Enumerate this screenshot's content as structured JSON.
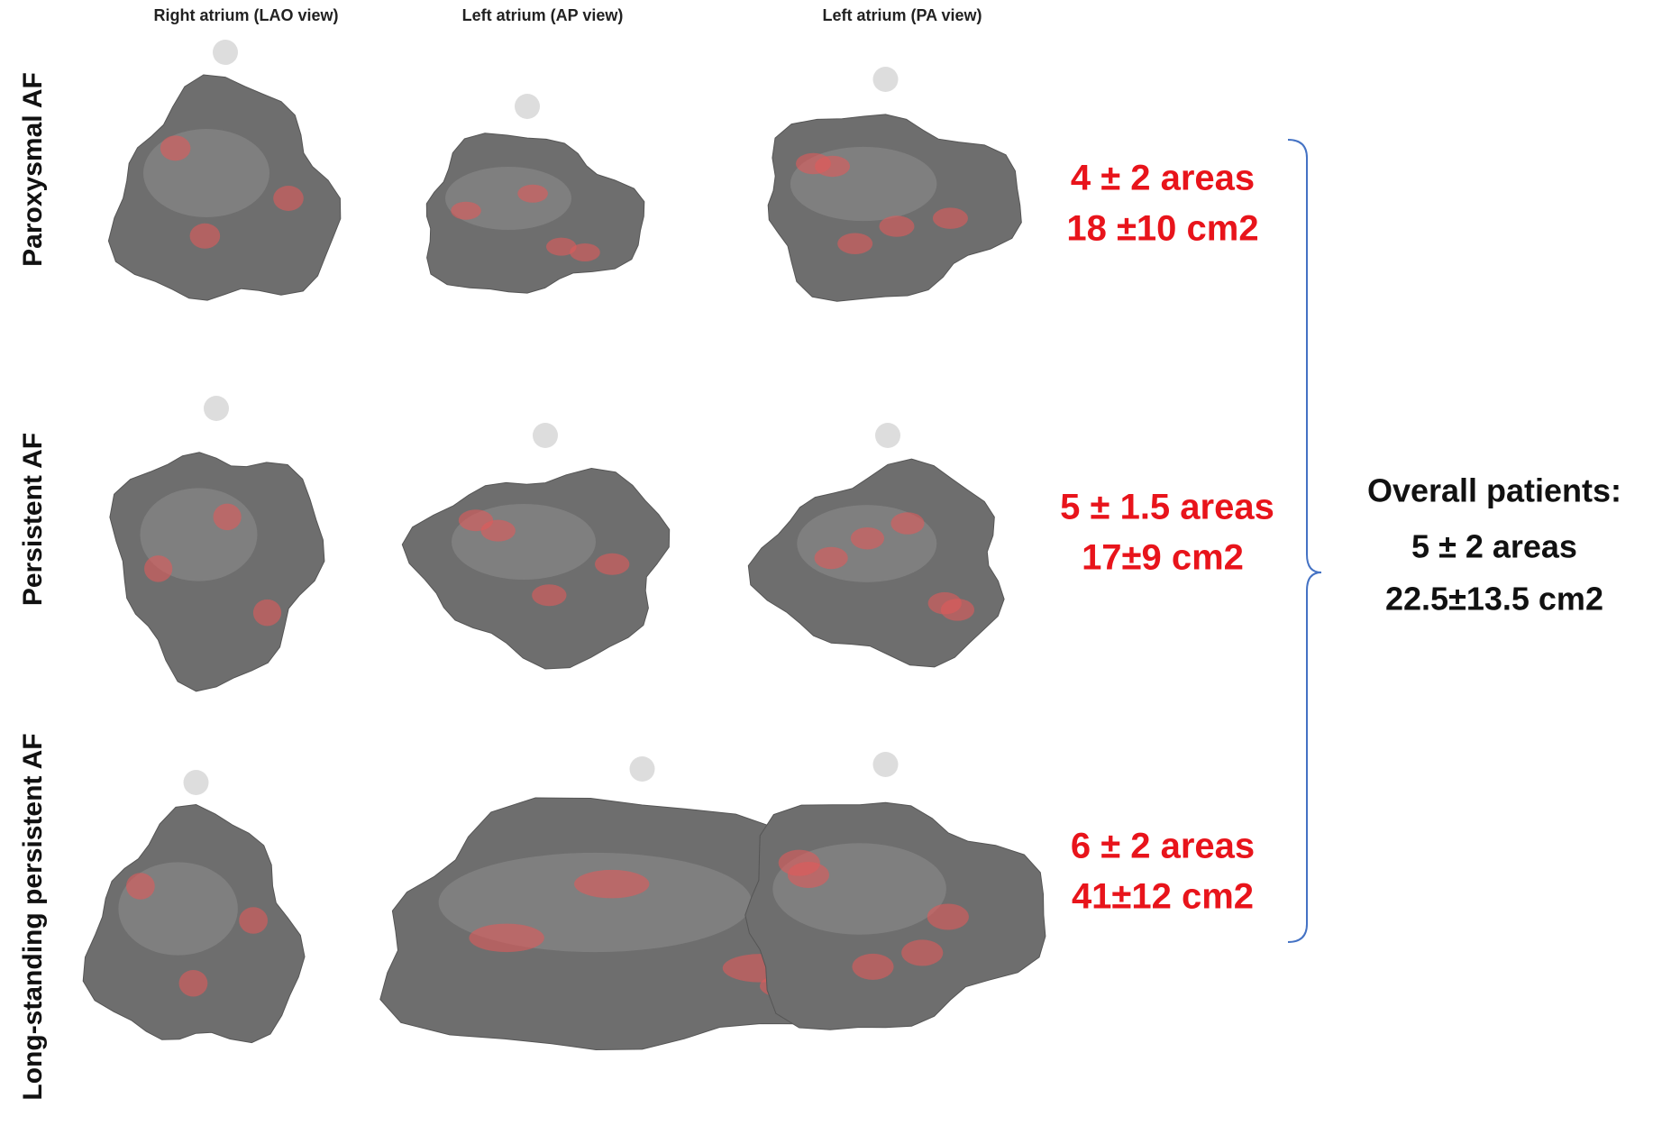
{
  "column_headers": [
    "Right atrium (LAO view)",
    "Left atrium (AP view)",
    "Left atrium (PA view)"
  ],
  "rows": [
    {
      "label": "Paroxysmal AF",
      "areas": "4 ± 2 areas",
      "surface": "18 ±10 cm2"
    },
    {
      "label": "Persistent AF",
      "areas": "5 ± 1.5 areas",
      "surface": "17±9 cm2"
    },
    {
      "label": "Long-standing persistent AF",
      "areas": "6 ± 2 areas",
      "surface": "41±12 cm2"
    }
  ],
  "overall": {
    "title": "Overall patients:",
    "areas": "5 ± 2 areas",
    "surface": "22.5±13.5 cm2"
  }
}
